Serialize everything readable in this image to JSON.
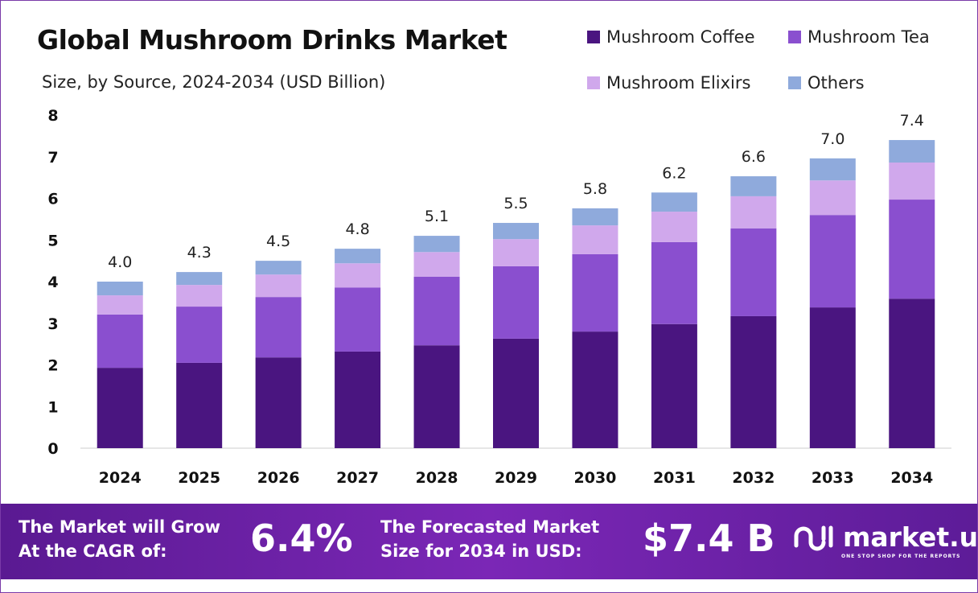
{
  "chart_data": {
    "type": "bar",
    "stacked": true,
    "title": "Global Mushroom Drinks Market",
    "subtitle": "Size, by Source, 2024-2034 (USD Billion)",
    "categories": [
      "2024",
      "2025",
      "2026",
      "2027",
      "2028",
      "2029",
      "2030",
      "2031",
      "2032",
      "2033",
      "2034"
    ],
    "series": [
      {
        "name": "Mushroom Coffee",
        "color": "#4a1580",
        "values": [
          1.93,
          2.05,
          2.18,
          2.32,
          2.47,
          2.63,
          2.8,
          2.98,
          3.17,
          3.38,
          3.59
        ]
      },
      {
        "name": "Mushroom Tea",
        "color": "#8a4fcf",
        "values": [
          1.28,
          1.35,
          1.45,
          1.54,
          1.65,
          1.74,
          1.86,
          1.97,
          2.11,
          2.22,
          2.38
        ]
      },
      {
        "name": "Mushroom Elixirs",
        "color": "#d0a8ec",
        "values": [
          0.46,
          0.52,
          0.54,
          0.58,
          0.59,
          0.65,
          0.69,
          0.73,
          0.77,
          0.83,
          0.89
        ]
      },
      {
        "name": "Others",
        "color": "#8faadc",
        "values": [
          0.33,
          0.31,
          0.33,
          0.35,
          0.39,
          0.39,
          0.41,
          0.46,
          0.48,
          0.53,
          0.54
        ]
      }
    ],
    "totals": [
      "4.0",
      "4.3",
      "4.5",
      "4.8",
      "5.1",
      "5.5",
      "5.8",
      "6.2",
      "6.6",
      "7.0",
      "7.4"
    ],
    "yticks": [
      "0",
      "1",
      "2",
      "3",
      "4",
      "5",
      "6",
      "7",
      "8"
    ],
    "ylim": [
      0,
      8
    ],
    "grid": false,
    "legend": "top-right"
  },
  "banner": {
    "cagr_label_1": "The Market will Grow",
    "cagr_label_2": "At the CAGR of:",
    "cagr_value": "6.4%",
    "forecast_label_1": "The Forecasted Market",
    "forecast_label_2": "Size for 2034 in USD:",
    "forecast_value": "$7.4 B",
    "logo_name": "market.us",
    "logo_tagline": "ONE STOP SHOP FOR THE REPORTS"
  }
}
